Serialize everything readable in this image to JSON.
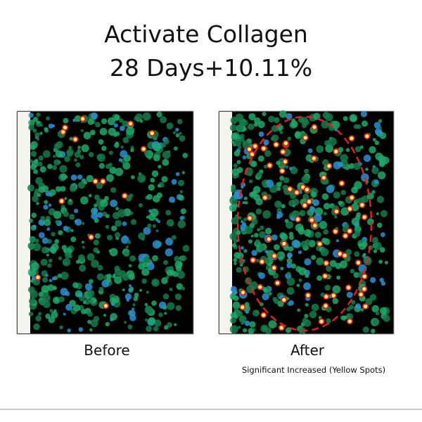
{
  "header": {
    "title_line1": "Activate Collagen",
    "title_line2": "28 Days+10.11%"
  },
  "panels": [
    {
      "label": "Before"
    },
    {
      "label": "After",
      "caption": "Significant Increased  (Yellow Spots)"
    }
  ]
}
